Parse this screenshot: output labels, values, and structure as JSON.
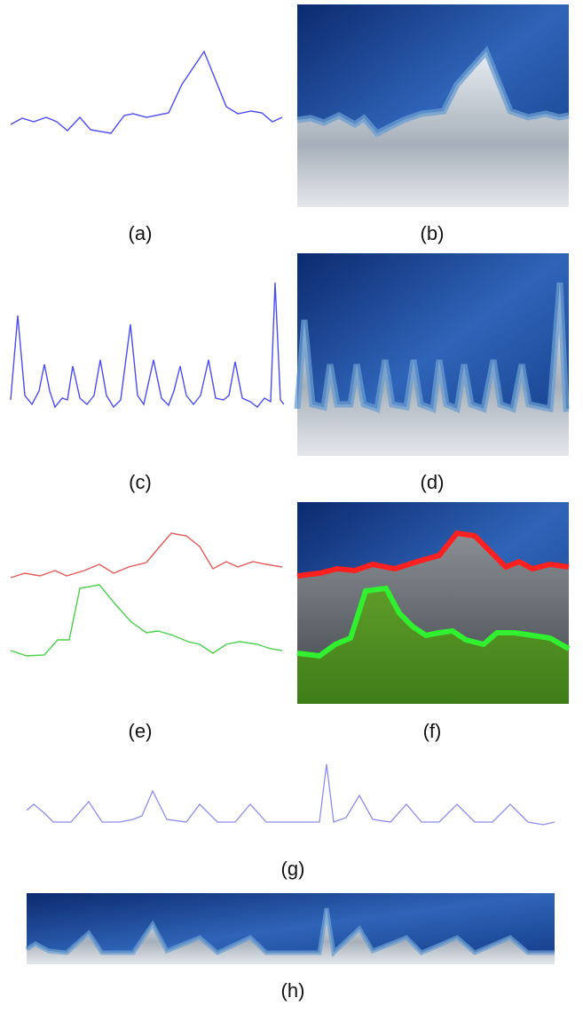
{
  "captions": [
    "(a)",
    "(b)",
    "(c)",
    "(d)",
    "(e)",
    "(f)",
    "(g)",
    "(h)"
  ]
}
